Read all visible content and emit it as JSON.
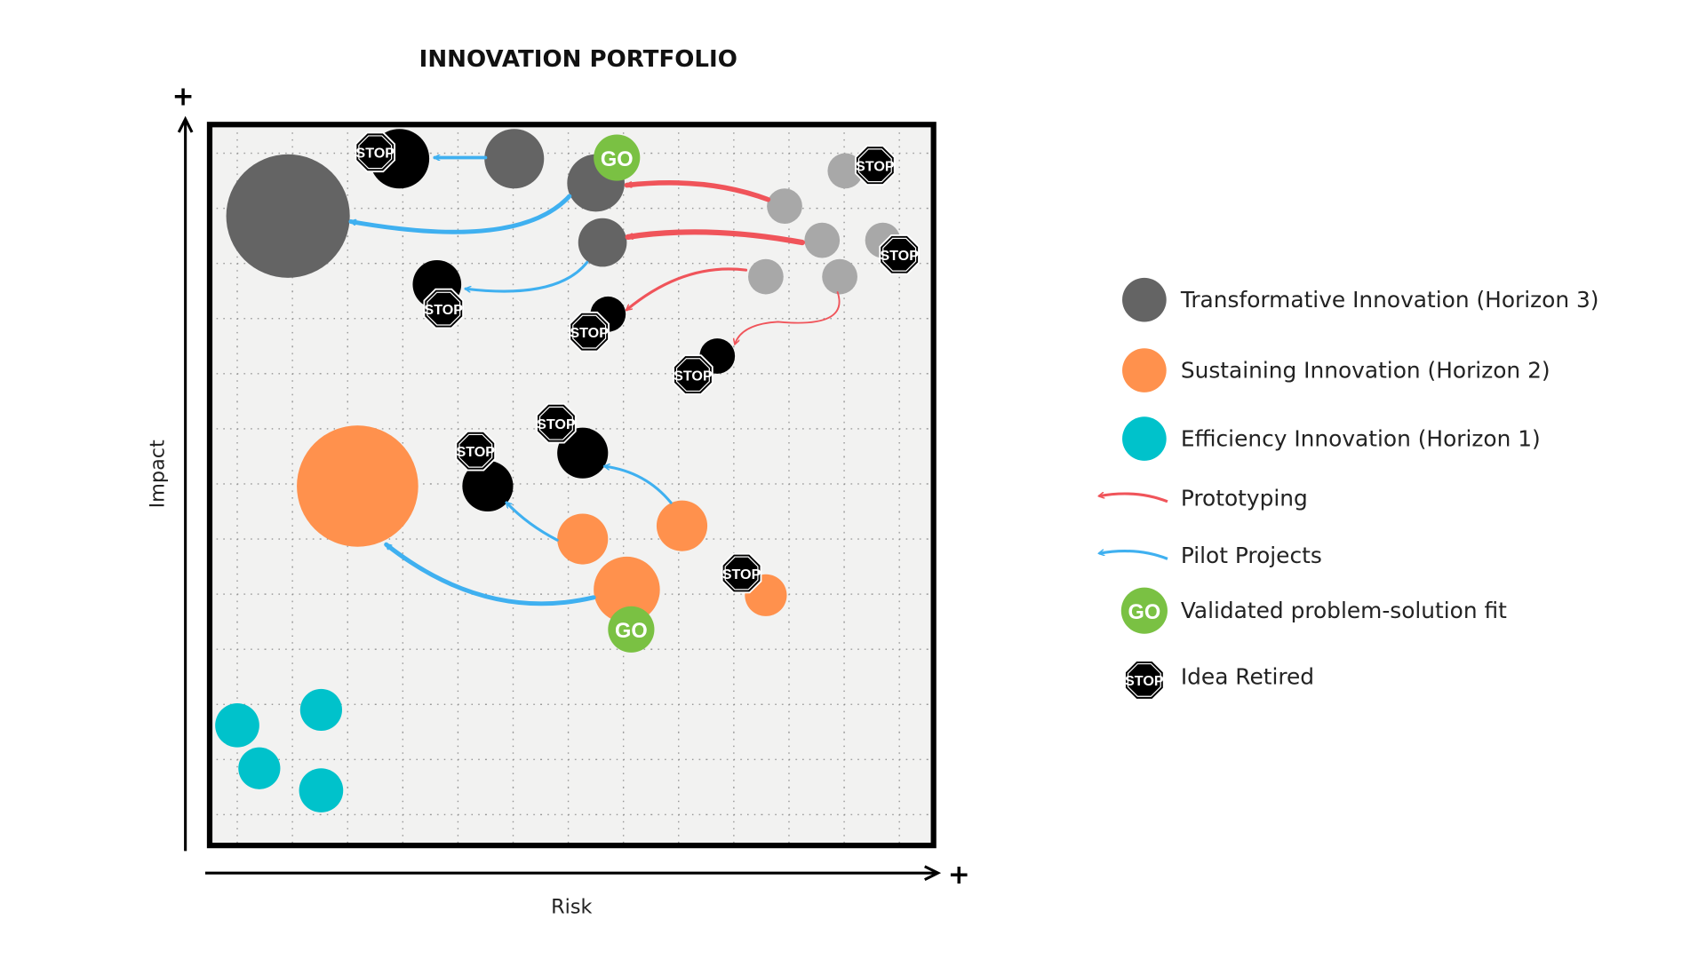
{
  "title": "INNOVATION PORTFOLIO",
  "axes": {
    "y_plus": "+",
    "x_plus": "+",
    "y_label": "Impact",
    "x_label": "Risk"
  },
  "badges": [
    "STOP",
    "STOP",
    "STOP",
    "STOP",
    "STOP",
    "STOP",
    "STOP",
    "STOP",
    "STOP",
    "GO",
    "GO"
  ],
  "legend": [
    {
      "label": "Transformative Innovation (Horizon 3)"
    },
    {
      "label": "Sustaining Innovation (Horizon 2)"
    },
    {
      "label": "Efficiency Innovation (Horizon 1)"
    },
    {
      "label": "Prototyping"
    },
    {
      "label": "Pilot Projects"
    },
    {
      "icon": "GO",
      "label": "Validated problem-solution fit"
    },
    {
      "icon": "STOP",
      "label": "Idea Retired"
    }
  ]
}
